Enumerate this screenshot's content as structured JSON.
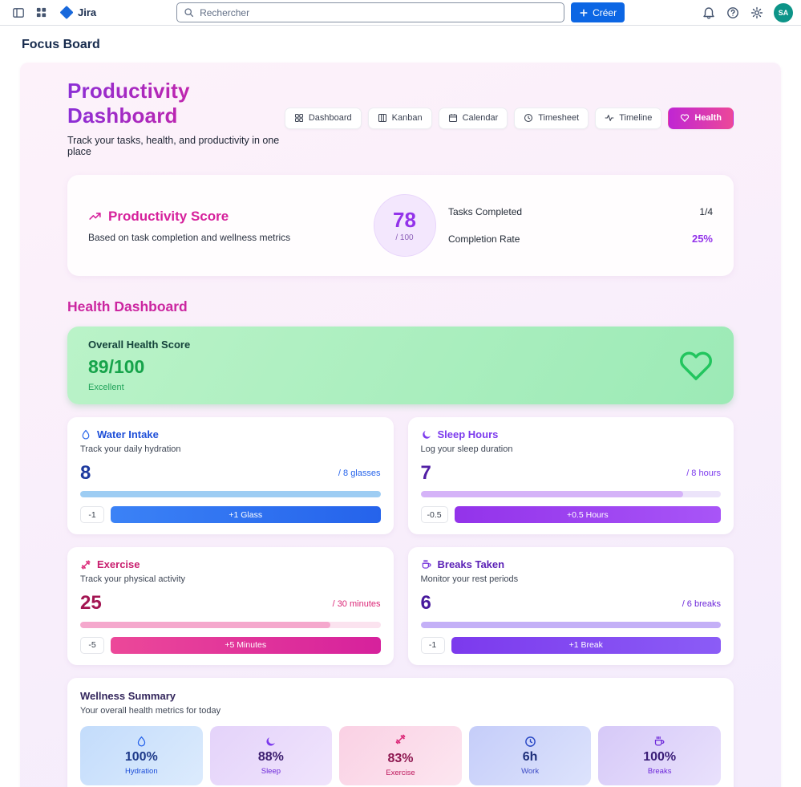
{
  "navbar": {
    "app_name": "Jira",
    "search_placeholder": "Rechercher",
    "create_button": "Créer",
    "avatar_initials": "SA"
  },
  "page_title": "Focus Board",
  "header": {
    "title": "Productivity Dashboard",
    "subtitle": "Track your tasks, health, and productivity in one place",
    "tabs": [
      {
        "label": "Dashboard",
        "icon": "grid-icon",
        "active": false
      },
      {
        "label": "Kanban",
        "icon": "kanban-icon",
        "active": false
      },
      {
        "label": "Calendar",
        "icon": "calendar-icon",
        "active": false
      },
      {
        "label": "Timesheet",
        "icon": "clock-icon",
        "active": false
      },
      {
        "label": "Timeline",
        "icon": "timeline-icon",
        "active": false
      },
      {
        "label": "Health",
        "icon": "heart-icon",
        "active": true
      }
    ]
  },
  "productivity_score": {
    "title": "Productivity Score",
    "subtitle": "Based on task completion and wellness metrics",
    "score": "78",
    "score_denominator": "/ 100",
    "stats": [
      {
        "label": "Tasks Completed",
        "value": "1/4"
      },
      {
        "label": "Completion Rate",
        "value": "25%"
      }
    ]
  },
  "health_dashboard": {
    "section_title": "Health Dashboard",
    "overall_score": {
      "title": "Overall Health Score",
      "score": "89/100",
      "status": "Excellent"
    },
    "metrics": [
      {
        "title": "Water Intake",
        "subtitle": "Track your daily hydration",
        "value": "8",
        "target": "/ 8 glasses",
        "progress": 100,
        "decrement_label": "-1",
        "increment_label": "+1 Glass",
        "icon": "droplet-icon",
        "theme": "blue"
      },
      {
        "title": "Sleep Hours",
        "subtitle": "Log your sleep duration",
        "value": "7",
        "target": "/ 8 hours",
        "progress": 87.5,
        "decrement_label": "-0.5",
        "increment_label": "+0.5 Hours",
        "icon": "moon-icon",
        "theme": "purple"
      },
      {
        "title": "Exercise",
        "subtitle": "Track your physical activity",
        "value": "25",
        "target": "/ 30 minutes",
        "progress": 83.3,
        "decrement_label": "-5",
        "increment_label": "+5 Minutes",
        "icon": "dumbbell-icon",
        "theme": "pink"
      },
      {
        "title": "Breaks Taken",
        "subtitle": "Monitor your rest periods",
        "value": "6",
        "target": "/ 6 breaks",
        "progress": 100,
        "decrement_label": "-1",
        "increment_label": "+1 Break",
        "icon": "coffee-icon",
        "theme": "violet"
      }
    ],
    "wellness_summary": {
      "title": "Wellness Summary",
      "subtitle": "Your overall health metrics for today",
      "tiles": [
        {
          "value": "100%",
          "label": "Hydration",
          "icon": "droplet-icon",
          "theme": "blue"
        },
        {
          "value": "88%",
          "label": "Sleep",
          "icon": "moon-icon",
          "theme": "purple"
        },
        {
          "value": "83%",
          "label": "Exercise",
          "icon": "dumbbell-icon",
          "theme": "pink"
        },
        {
          "value": "6h",
          "label": "Work",
          "icon": "clock-icon",
          "theme": "indigo"
        },
        {
          "value": "100%",
          "label": "Breaks",
          "icon": "coffee-icon",
          "theme": "violet"
        }
      ]
    }
  },
  "colors": {
    "brand_blue": "#0c66e4",
    "title_gradient": [
      "#8b2fd6",
      "#d6219c"
    ],
    "health_tab_gradient": [
      "#c026d3",
      "#ec4899"
    ],
    "score_purple": "#9333ea",
    "health_green": "#16a34a",
    "avatar_teal": "#0d9488"
  }
}
